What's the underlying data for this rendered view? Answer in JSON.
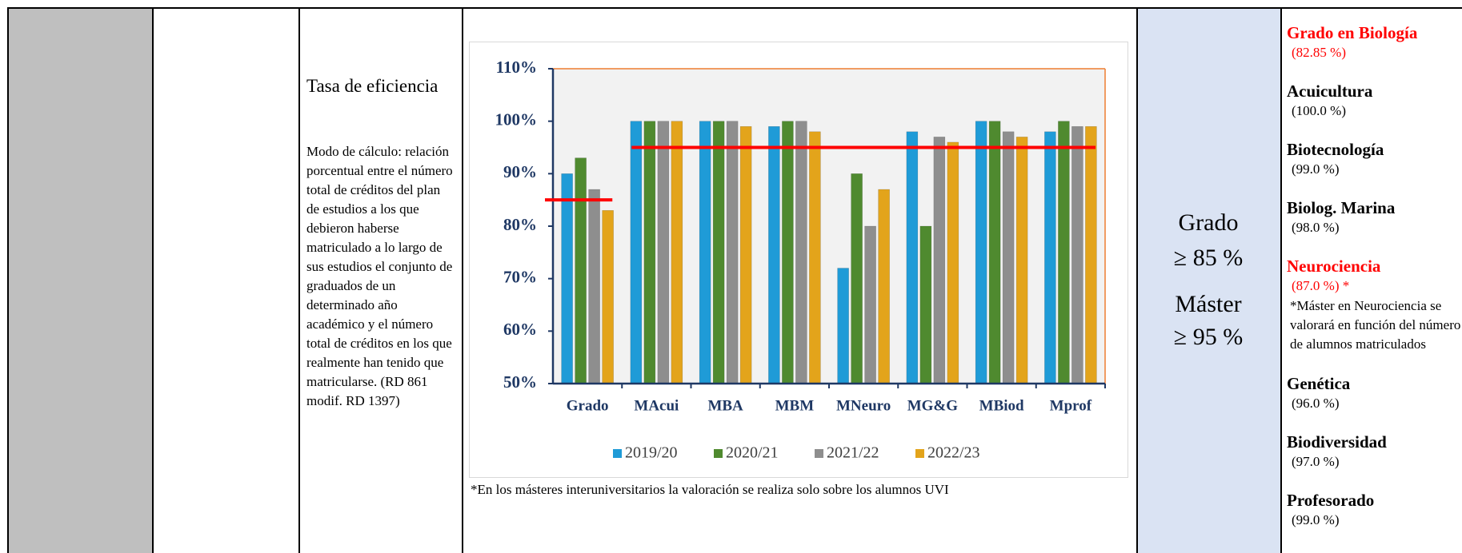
{
  "table": {
    "indicator": {
      "title": "Tasa de eficiencia",
      "description": "Modo de cálculo: relación porcentual entre el número total de créditos del plan de estudios a los que debieron haberse matriculado a lo largo de sus estudios el conjunto de graduados de un determinado año académico y el número total de créditos en los que realmente han tenido que matricularse. (RD 861 modif. RD 1397)"
    },
    "targets": [
      "Grado",
      "≥ 85 %",
      "Máster",
      "≥ 95 %"
    ],
    "results": [
      {
        "name": "Grado en Biología",
        "value": "(82.85 %)",
        "color": "#ff0000"
      },
      {
        "name": "Acuicultura",
        "value": "(100.0 %)",
        "color": "#000000"
      },
      {
        "name": "Biotecnología",
        "value": "(99.0 %)",
        "color": "#000000"
      },
      {
        "name": "Biolog. Marina",
        "value": "(98.0 %)",
        "color": "#000000"
      },
      {
        "name": "Neurociencia",
        "value": "(87.0 %) *",
        "color": "#ff0000",
        "note": "*Máster en Neurociencia se valorará en función del número de alumnos matriculados"
      },
      {
        "name": "Genética",
        "value": "(96.0 %)",
        "color": "#000000"
      },
      {
        "name": "Biodiversidad",
        "value": "(97.0 %)",
        "color": "#000000"
      },
      {
        "name": "Profesorado",
        "value": "(99.0 %)",
        "color": "#000000"
      }
    ]
  },
  "chart_data": {
    "type": "bar",
    "categories": [
      "Grado",
      "MAcui",
      "MBA",
      "MBM",
      "MNeuro",
      "MG&G",
      "MBiod",
      "Mprof"
    ],
    "series": [
      {
        "name": "2019/20",
        "color": "#1f9bd7",
        "values": [
          90,
          100,
          100,
          99,
          72,
          98,
          100,
          98
        ]
      },
      {
        "name": "2020/21",
        "color": "#4f8a2f",
        "values": [
          93,
          100,
          100,
          100,
          90,
          80,
          100,
          100
        ]
      },
      {
        "name": "2021/22",
        "color": "#8e8e8e",
        "values": [
          87,
          100,
          100,
          100,
          80,
          97,
          98,
          99
        ]
      },
      {
        "name": "2022/23",
        "color": "#e3a41b",
        "values": [
          83,
          100,
          99,
          98,
          87,
          96,
          97,
          99
        ]
      }
    ],
    "ylim": [
      50,
      110
    ],
    "yticks": [
      {
        "value": 50,
        "label": "50%"
      },
      {
        "value": 60,
        "label": "60%"
      },
      {
        "value": 70,
        "label": "70%"
      },
      {
        "value": 80,
        "label": "80%"
      },
      {
        "value": 90,
        "label": "90%"
      },
      {
        "value": 100,
        "label": "100%"
      },
      {
        "value": 110,
        "label": "110%"
      }
    ],
    "reference_lines": [
      {
        "value": 85,
        "first_category": 0,
        "last_category": 0,
        "color": "#ff0000"
      },
      {
        "value": 95,
        "first_category": 1,
        "last_category": 7,
        "color": "#ff0000"
      }
    ],
    "grid": false,
    "legend": "bottom",
    "note": "*En los másteres interuniversitarios la valoración se realiza solo sobre los alumnos UVI"
  }
}
